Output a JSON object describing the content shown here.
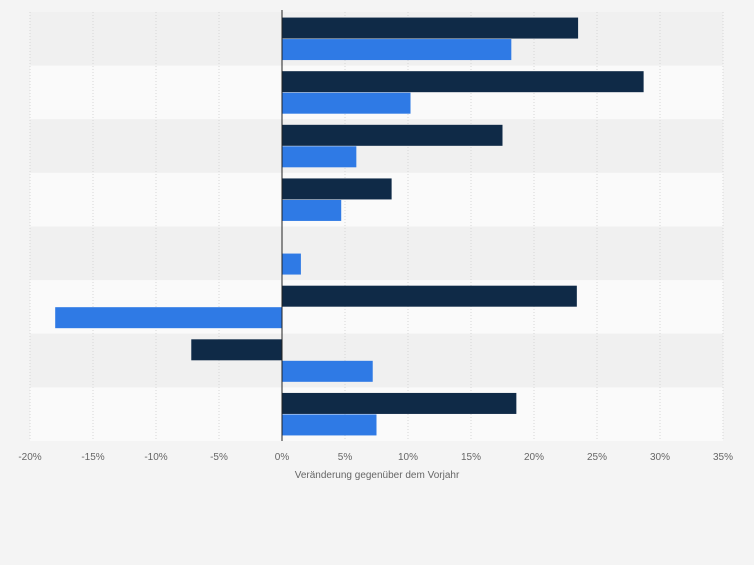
{
  "chart_data": {
    "type": "bar",
    "orientation": "horizontal",
    "categories": [
      "",
      "",
      "",
      "",
      "",
      "",
      "",
      ""
    ],
    "series": [
      {
        "color": "#0f2a47",
        "values": [
          23.5,
          28.7,
          17.5,
          8.7,
          null,
          23.4,
          -7.2,
          18.6
        ]
      },
      {
        "color": "#2f7ae5",
        "values": [
          18.2,
          10.2,
          5.9,
          4.7,
          1.5,
          -18.0,
          7.2,
          7.5
        ]
      }
    ],
    "xlim": [
      -20,
      35
    ],
    "xticks": [
      -20,
      -15,
      -10,
      -5,
      0,
      5,
      10,
      15,
      20,
      25,
      30,
      35
    ],
    "tick_labels": [
      "-20%",
      "-15%",
      "-10%",
      "-5%",
      "0%",
      "5%",
      "10%",
      "15%",
      "20%",
      "25%",
      "30%",
      "35%"
    ],
    "xlabel": "Veränderung gegenüber dem Vorjahr",
    "ylabel": "",
    "grid": true,
    "legend": "none"
  }
}
